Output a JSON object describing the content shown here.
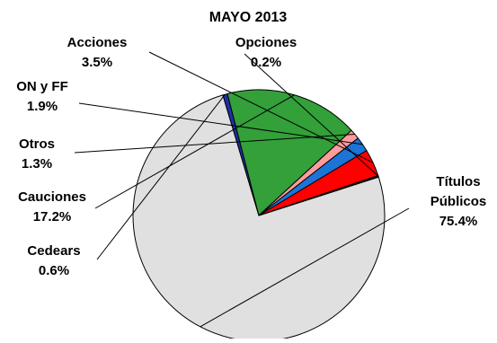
{
  "chart_data": {
    "type": "pie",
    "title": "MAYO 2013",
    "slices": [
      {
        "name": "Títulos Públicos",
        "name_lines": [
          "Títulos",
          "Públicos"
        ],
        "value": 75.4,
        "value_label": "75.4%",
        "color": "#e0e0e0"
      },
      {
        "name": "Cedears",
        "name_lines": [
          "Cedears"
        ],
        "value": 0.6,
        "value_label": "0.6%",
        "color": "#1f2fa8"
      },
      {
        "name": "Cauciones",
        "name_lines": [
          "Cauciones"
        ],
        "value": 17.2,
        "value_label": "17.2%",
        "color": "#33a03a"
      },
      {
        "name": "Otros",
        "name_lines": [
          "Otros"
        ],
        "value": 1.3,
        "value_label": "1.3%",
        "color": "#ff9b9b"
      },
      {
        "name": "ON y FF",
        "name_lines": [
          "ON y FF"
        ],
        "value": 1.9,
        "value_label": "1.9%",
        "color": "#1b74d6"
      },
      {
        "name": "Acciones",
        "name_lines": [
          "Acciones"
        ],
        "value": 3.5,
        "value_label": "3.5%",
        "color": "#ff0000"
      },
      {
        "name": "Opciones",
        "name_lines": [
          "Opciones"
        ],
        "value": 0.2,
        "value_label": "0.2%",
        "color": "#000000"
      }
    ],
    "legend": "none",
    "data_labels": "outside with leader lines"
  }
}
